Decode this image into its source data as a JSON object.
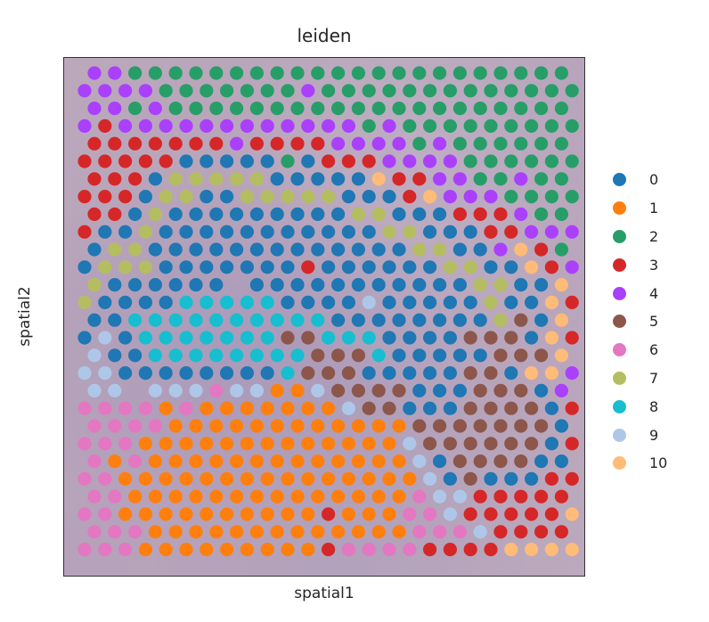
{
  "chart_data": {
    "type": "scatter",
    "title": "leiden",
    "xlabel": "spatial1",
    "ylabel": "spatial2",
    "grid": false,
    "legend_position": "right",
    "background": "H&E tissue image (purple/pink)",
    "legend": [
      {
        "label": "0",
        "color": "#1f77b4"
      },
      {
        "label": "1",
        "color": "#ff7f0e"
      },
      {
        "label": "2",
        "color": "#279e68"
      },
      {
        "label": "3",
        "color": "#d62728"
      },
      {
        "label": "4",
        "color": "#aa40fc"
      },
      {
        "label": "5",
        "color": "#8c564b"
      },
      {
        "label": "6",
        "color": "#e377c2"
      },
      {
        "label": "7",
        "color": "#b5bd61"
      },
      {
        "label": "8",
        "color": "#17becf"
      },
      {
        "label": "9",
        "color": "#aec7e8"
      },
      {
        "label": "10",
        "color": "#ffbb78"
      }
    ],
    "grid_layout": {
      "row_y_start": 17,
      "row_spacing": 19.8,
      "col_spacing": 22.8,
      "even_row_x_start": 34,
      "odd_row_x_start": 23,
      "spot_radius": 7.6
    },
    "rows": [
      "4,4,2,2,2,2,2,2,2,2,2,2,2,2,2,2,2,2,2,2,2,2,2,2",
      "4,4,4,4,2,2,2,2,2,2,2,4,2,2,2,2,2,2,2,2,2,2,2,2,2",
      "4,4,2,4,2,2,2,2,2,2,2,2,2,2,2,2,2,2,2,2,2,2,2,2",
      "4,3,4,4,4,4,4,4,4,4,4,4,4,4,2,4,2,2,2,2,2,2,2,2,2",
      "3,3,3,3,3,3,3,4,3,3,3,3,4,4,4,4,2,4,2,2,2,2,2,2",
      "3,3,3,3,3,0,0,0,0,0,2,0,3,3,3,4,4,4,4,2,2,2,2,2,2",
      "3,3,3,0,7,7,7,7,7,0,0,0,0,0,10,3,3,4,4,2,2,4,2,2",
      "3,3,3,0,7,7,0,0,7,7,7,7,7,0,0,0,3,10,4,4,4,2,2,2,2",
      "3,3,0,7,0,0,0,0,0,0,0,0,0,7,7,0,0,0,3,3,3,4,2,2",
      "3,0,0,7,0,0,0,0,0,0,0,0,0,0,0,7,7,0,0,0,3,3,4,4,4",
      "0,7,7,0,0,0,0,0,0,0,0,0,0,0,0,0,7,7,0,0,4,10,3,2",
      "0,7,7,7,0,0,0,0,0,0,0,3,0,0,0,0,0,0,7,7,0,0,10,3,4",
      "7,0,0,0,0,0,0,-,0,0,0,0,0,0,0,0,0,0,0,7,7,0,0,10",
      "7,0,0,0,0,8,8,8,8,8,0,0,0,0,9,0,0,0,0,0,7,0,0,10,3",
      "0,0,8,8,8,8,8,8,8,8,8,8,0,0,0,0,0,0,0,0,7,5,0,10",
      "0,9,0,8,8,8,8,8,8,8,5,5,8,8,8,0,0,0,0,5,5,5,0,10,3",
      "9,0,0,8,8,8,8,8,8,8,8,5,5,5,8,0,0,0,0,0,5,5,5,10",
      "9,9,0,0,0,0,0,0,0,0,8,5,5,5,0,0,0,0,0,5,5,0,10,10,4",
      "9,9,-,9,9,9,6,9,9,1,1,9,5,5,5,5,0,0,0,5,5,5,0,4",
      "6,6,6,6,1,6,1,1,1,1,1,1,1,9,5,5,0,0,0,5,5,5,5,0,3",
      "6,6,6,6,1,1,1,1,1,1,1,1,1,1,1,1,5,5,5,5,5,5,5,0",
      "6,6,6,1,1,1,1,1,1,1,1,1,1,1,1,1,9,5,5,5,5,5,5,0,3",
      "6,1,6,1,1,1,1,1,1,1,1,1,1,1,1,1,9,0,5,5,5,5,0,0",
      "6,6,1,1,1,1,1,1,1,1,1,1,1,1,1,1,1,9,0,5,0,0,0,3,3",
      "6,6,1,1,1,1,1,1,1,1,1,1,1,1,1,1,6,9,9,3,3,3,3,3",
      "6,6,1,1,1,1,1,1,1,1,1,1,3,1,1,1,6,6,9,3,3,3,3,3,10",
      "6,6,6,1,1,1,1,1,1,1,1,1,1,1,1,1,6,6,6,9,3,3,3,3,10",
      "6,6,6,1,1,1,1,1,1,1,1,1,3,6,6,6,6,3,3,3,3,10,10,10,10"
    ]
  }
}
